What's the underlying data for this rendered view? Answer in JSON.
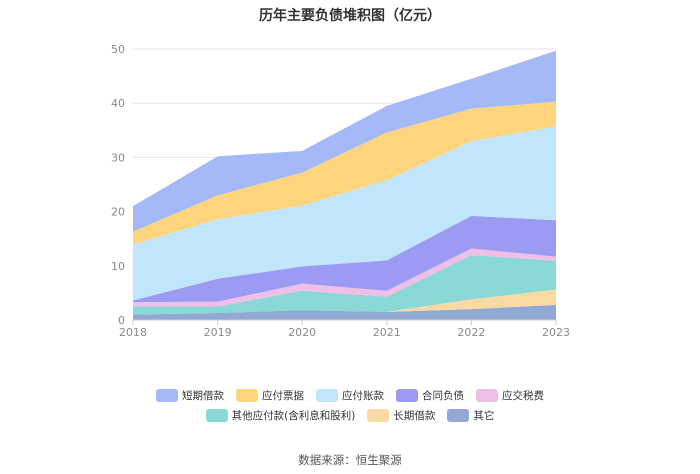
{
  "chart_data": {
    "type": "area",
    "stacked": true,
    "title": "历年主要负债堆积图（亿元）",
    "categories": [
      "2018",
      "2019",
      "2020",
      "2021",
      "2022",
      "2023"
    ],
    "ylim": [
      0,
      50
    ],
    "yticks": [
      0,
      10,
      20,
      30,
      40,
      50
    ],
    "grid": true,
    "legend_position": "bottom",
    "series": [
      {
        "name": "其它",
        "color": "#92a9d6",
        "values": [
          1.0,
          1.3,
          1.8,
          1.5,
          2.0,
          2.8
        ]
      },
      {
        "name": "长期借款",
        "color": "#fbd9a3",
        "values": [
          0.0,
          0.0,
          0.0,
          0.0,
          1.8,
          2.8
        ]
      },
      {
        "name": "其他应付款(含利息和股利)",
        "color": "#8ad9d6",
        "values": [
          1.5,
          1.2,
          3.6,
          2.8,
          8.2,
          5.3
        ]
      },
      {
        "name": "应交税费",
        "color": "#f0bfe8",
        "values": [
          0.8,
          0.9,
          1.3,
          1.1,
          1.2,
          0.8
        ]
      },
      {
        "name": "合同负债",
        "color": "#9b9bf3",
        "values": [
          0.3,
          4.2,
          3.2,
          5.6,
          6.0,
          6.7
        ]
      },
      {
        "name": "应付账款",
        "color": "#c1e6fb",
        "values": [
          10.3,
          11.0,
          11.2,
          14.8,
          13.8,
          17.3
        ]
      },
      {
        "name": "应付票据",
        "color": "#fdd57e",
        "values": [
          2.4,
          4.4,
          6.1,
          8.8,
          6.0,
          4.6
        ]
      },
      {
        "name": "短期借款",
        "color": "#a5b8f7",
        "values": [
          4.7,
          7.2,
          4.0,
          4.9,
          5.5,
          9.4
        ]
      }
    ],
    "legend_order": [
      "短期借款",
      "应付票据",
      "应付账款",
      "合同负债",
      "应交税费",
      "其他应付款(含利息和股利)",
      "长期借款",
      "其它"
    ]
  },
  "source": "数据来源：恒生聚源"
}
